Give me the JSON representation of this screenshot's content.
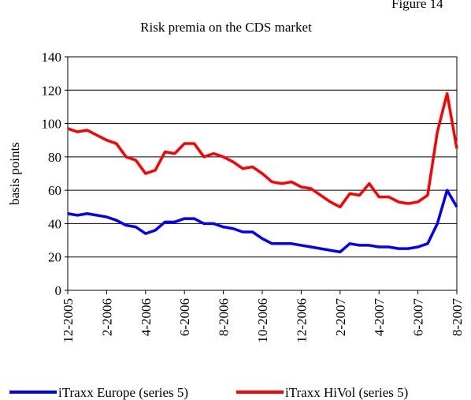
{
  "chart_data": {
    "type": "line",
    "figure_label": "Figure 14",
    "title": "Risk premia on the CDS market",
    "y_label": "basis points",
    "categories": [
      "12-2005",
      null,
      null,
      null,
      "2-2006",
      null,
      null,
      null,
      "4-2006",
      null,
      null,
      null,
      "6-2006",
      null,
      null,
      null,
      "8-2006",
      null,
      null,
      null,
      "10-2006",
      null,
      null,
      null,
      "12-2006",
      null,
      null,
      null,
      "2-2007",
      null,
      null,
      null,
      "4-2007",
      null,
      null,
      null,
      "6-2007",
      null,
      null,
      null,
      "8-2007"
    ],
    "series": [
      {
        "name": "iTraxx Europe (series 5)",
        "color": "#0000ff",
        "values": [
          46,
          45,
          46,
          45,
          44,
          42,
          39,
          38,
          34,
          36,
          41,
          41,
          43,
          43,
          40,
          40,
          38,
          37,
          35,
          35,
          31,
          28,
          28,
          28,
          27,
          26,
          25,
          24,
          23,
          28,
          27,
          27,
          26,
          26,
          25,
          25,
          26,
          28,
          40,
          60,
          50
        ]
      },
      {
        "name": "iTraxx HiVol (series 5)",
        "color": "#ff0000",
        "values": [
          97,
          95,
          96,
          93,
          90,
          88,
          80,
          78,
          70,
          72,
          83,
          82,
          88,
          88,
          80,
          82,
          80,
          77,
          73,
          74,
          70,
          65,
          64,
          65,
          62,
          61,
          57,
          53,
          50,
          58,
          57,
          64,
          56,
          56,
          53,
          52,
          53,
          57,
          95,
          118,
          85
        ]
      }
    ],
    "ylim": [
      0,
      140
    ],
    "yticks": [
      0,
      20,
      40,
      60,
      80,
      100,
      120,
      140
    ],
    "grid": true,
    "legend": "bottom"
  }
}
